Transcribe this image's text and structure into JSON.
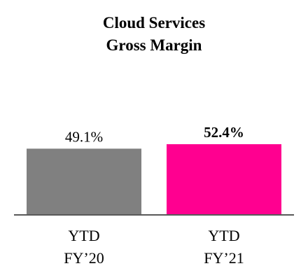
{
  "chart_data": {
    "type": "bar",
    "title_lines": [
      "Cloud Services",
      "Gross Margin"
    ],
    "categories": [
      {
        "line1": "YTD",
        "line2": "FY’20"
      },
      {
        "line1": "YTD",
        "line2": "FY’21"
      }
    ],
    "values": [
      49.1,
      52.4
    ],
    "data_labels": [
      "49.1%",
      "52.4%"
    ],
    "bold_labels": [
      false,
      true
    ],
    "colors": [
      "#808080",
      "#FF0090"
    ],
    "ylim": [
      0,
      100
    ],
    "grid": false,
    "legend": "none",
    "axis_color": "#595959"
  }
}
